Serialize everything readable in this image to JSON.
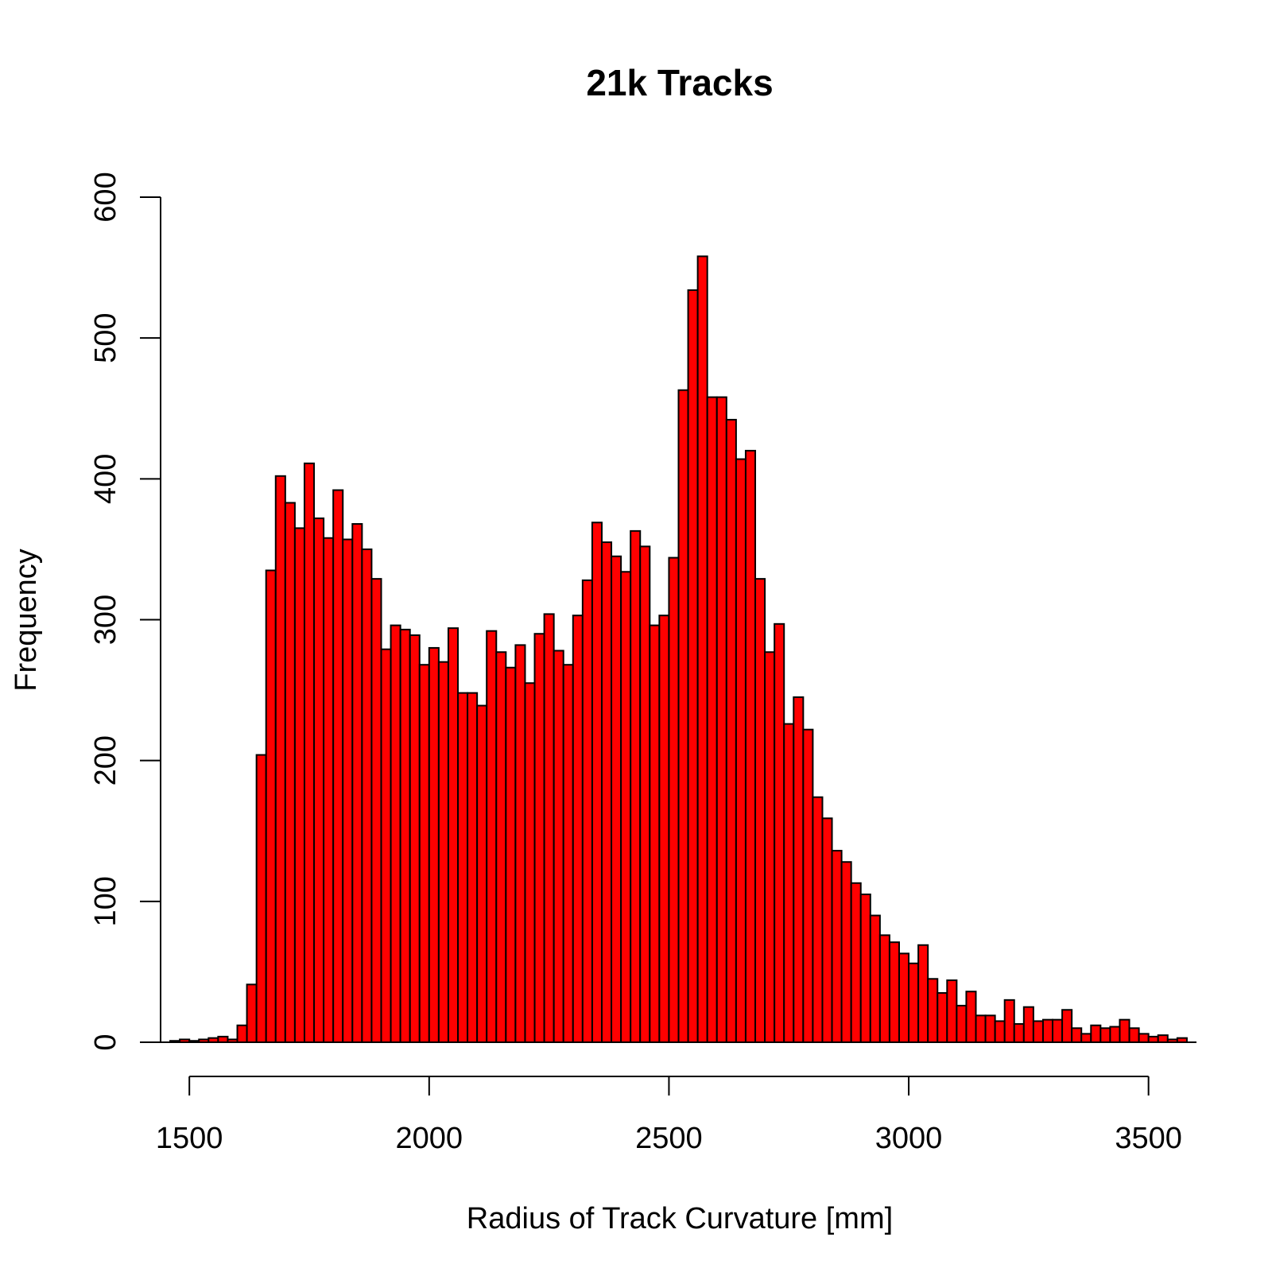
{
  "chart_data": {
    "type": "bar",
    "title": "21k Tracks",
    "xlabel": "Radius of Track Curvature [mm]",
    "ylabel": "Frequency",
    "xlim": [
      1440,
      3600
    ],
    "ylim": [
      0,
      600
    ],
    "xticks": [
      1500,
      2000,
      2500,
      3000,
      3500
    ],
    "yticks": [
      0,
      100,
      200,
      300,
      400,
      500,
      600
    ],
    "bin_width": 20,
    "bin_start": 1460,
    "bar_color": "#ff0000",
    "grid": false,
    "values": [
      1,
      2,
      1,
      2,
      3,
      4,
      2,
      12,
      41,
      204,
      335,
      402,
      383,
      365,
      411,
      372,
      358,
      392,
      357,
      368,
      350,
      329,
      279,
      296,
      293,
      289,
      268,
      280,
      270,
      294,
      248,
      248,
      239,
      292,
      277,
      266,
      282,
      255,
      290,
      304,
      278,
      268,
      303,
      328,
      369,
      355,
      345,
      334,
      363,
      352,
      296,
      303,
      344,
      463,
      534,
      558,
      458,
      458,
      442,
      414,
      420,
      329,
      277,
      297,
      226,
      245,
      222,
      174,
      159,
      136,
      128,
      113,
      105,
      90,
      76,
      71,
      63,
      56,
      69,
      45,
      35,
      44,
      26,
      36,
      19,
      19,
      15,
      30,
      13,
      25,
      15,
      16,
      16,
      23,
      10,
      6,
      12,
      10,
      11,
      16,
      10,
      6,
      4,
      5,
      2,
      3
    ]
  }
}
